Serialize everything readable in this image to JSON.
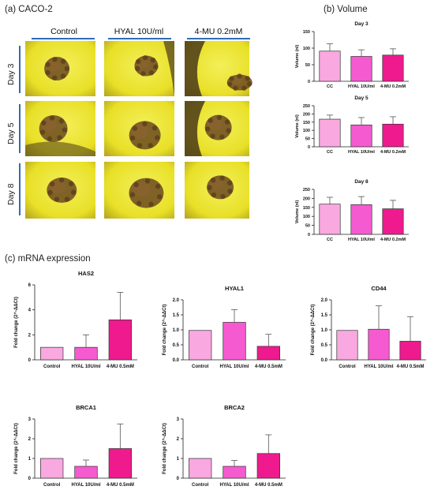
{
  "panels": {
    "a_label": "(a) CACO-2",
    "b_label": "(b) Volume",
    "c_label": "(c) mRNA expression"
  },
  "micrographs": {
    "columns": [
      "Control",
      "HYAL 10U/ml",
      "4-MU 0.2mM"
    ],
    "rows": [
      "Day 3",
      "Day 5",
      "Day 8"
    ],
    "colors": {
      "field": "#e8e027",
      "rim_dark": "#4a3a1a",
      "spheroid": "#6b4a20"
    }
  },
  "colors": {
    "light": "#f9a8e0",
    "mid": "#f55ad0",
    "dark": "#ee1a8e",
    "axis": "#222222",
    "error": "#555555"
  },
  "chart_data": [
    {
      "id": "vol_day3",
      "type": "bar",
      "title": "Day 3",
      "ylabel": "Volume (nl)",
      "categories": [
        "CC",
        "HYAL 10U/ml",
        "4-MU 0.2mM"
      ],
      "values": [
        91,
        75,
        79
      ],
      "errors": [
        22,
        20,
        19
      ],
      "ylim": [
        0,
        150
      ],
      "yticks": [
        0,
        50,
        100,
        150
      ]
    },
    {
      "id": "vol_day5",
      "type": "bar",
      "title": "Day 5",
      "ylabel": "Volume (nl)",
      "categories": [
        "CC",
        "HYAL 10U/ml",
        "4-MU 0.2mM"
      ],
      "values": [
        168,
        133,
        138
      ],
      "errors": [
        25,
        45,
        45
      ],
      "ylim": [
        0,
        250
      ],
      "yticks": [
        0,
        50,
        100,
        150,
        200,
        250
      ]
    },
    {
      "id": "vol_day8",
      "type": "bar",
      "title": "Day 8",
      "ylabel": "Volume (nl)",
      "categories": [
        "CC",
        "HYAL 10U/ml",
        "4-MU 0.2mM"
      ],
      "values": [
        168,
        165,
        142
      ],
      "errors": [
        38,
        45,
        47
      ],
      "ylim": [
        0,
        250
      ],
      "yticks": [
        0,
        50,
        100,
        150,
        200,
        250
      ]
    },
    {
      "id": "has2",
      "type": "bar",
      "title": "HAS2",
      "ylabel": "Fold change (2^-ΔΔCt)",
      "categories": [
        "Control",
        "HYAL 10U/ml",
        "4-MU 0.5mM"
      ],
      "values": [
        1.0,
        1.0,
        3.2
      ],
      "errors": [
        0,
        1.0,
        2.2
      ],
      "ylim": [
        0,
        6
      ],
      "yticks": [
        0,
        2,
        4,
        6
      ]
    },
    {
      "id": "hyal1",
      "type": "bar",
      "title": "HYAL1",
      "ylabel": "Fold change (2^-ΔΔCt)",
      "categories": [
        "Control",
        "HYAL 10U/ml",
        "4-MU 0.5mM"
      ],
      "values": [
        0.98,
        1.25,
        0.45
      ],
      "errors": [
        0,
        0.42,
        0.4
      ],
      "ylim": [
        0,
        2.0
      ],
      "yticks": [
        0.0,
        0.5,
        1.0,
        1.5,
        2.0
      ]
    },
    {
      "id": "cd44",
      "type": "bar",
      "title": "CD44",
      "ylabel": "Fold change (2^-ΔΔCt)",
      "categories": [
        "Control",
        "HYAL 10U/ml",
        "4-MU 0.5mM"
      ],
      "values": [
        0.98,
        1.02,
        0.62
      ],
      "errors": [
        0,
        0.78,
        0.82
      ],
      "ylim": [
        0,
        2.0
      ],
      "yticks": [
        0.0,
        0.5,
        1.0,
        1.5,
        2.0
      ]
    },
    {
      "id": "brca1",
      "type": "bar",
      "title": "BRCA1",
      "ylabel": "Fold change (2^-ΔΔCt)",
      "categories": [
        "Control",
        "HYAL 10U/ml",
        "4-MU 0.5mM"
      ],
      "values": [
        1.0,
        0.6,
        1.5
      ],
      "errors": [
        0,
        0.32,
        1.25
      ],
      "ylim": [
        0,
        3
      ],
      "yticks": [
        0,
        1,
        2,
        3
      ]
    },
    {
      "id": "brca2",
      "type": "bar",
      "title": "BRCA2",
      "ylabel": "Fold change (2^-ΔΔCt)",
      "categories": [
        "Control",
        "HYAL 10U/ml",
        "4-MU 0.5mM"
      ],
      "values": [
        1.0,
        0.6,
        1.25
      ],
      "errors": [
        0,
        0.3,
        0.95
      ],
      "ylim": [
        0,
        3
      ],
      "yticks": [
        0,
        1,
        2,
        3
      ]
    }
  ]
}
